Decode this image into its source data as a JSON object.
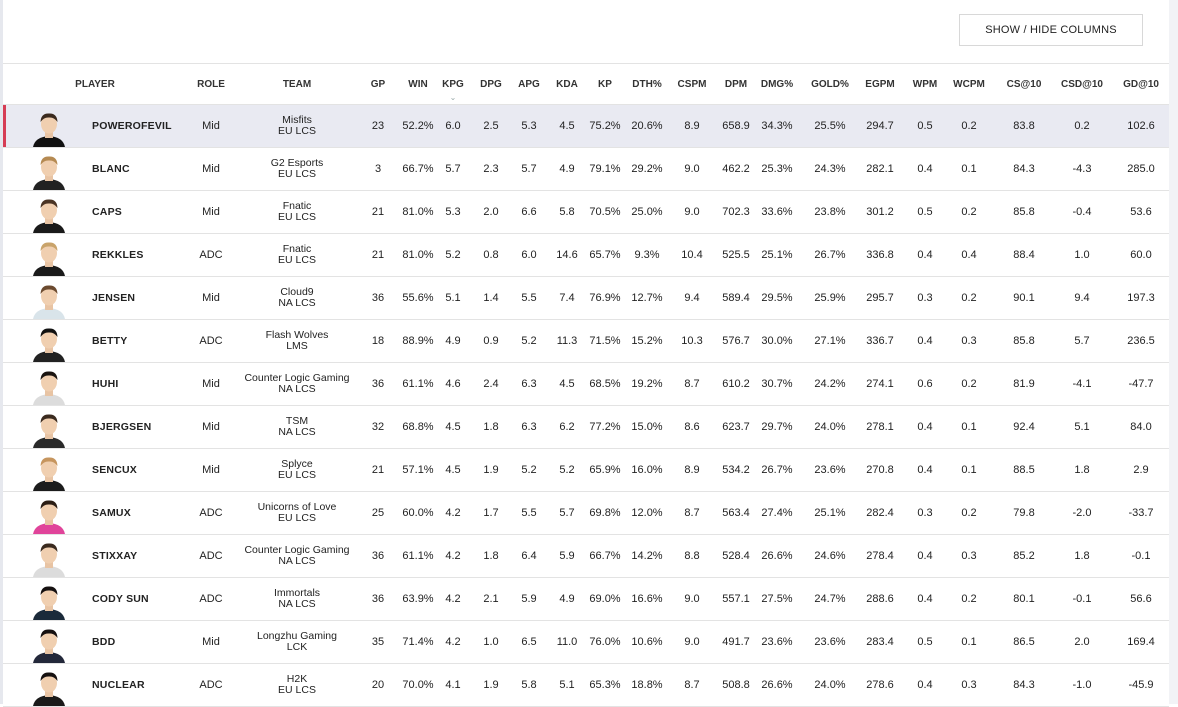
{
  "toolbar": {
    "show_hide_label": "SHOW / HIDE COLUMNS"
  },
  "columns": [
    "PLAYER",
    "ROLE",
    "TEAM",
    "GP",
    "WIN",
    "KPG",
    "DPG",
    "APG",
    "KDA",
    "KP",
    "DTH%",
    "CSPM",
    "DPM",
    "DMG%",
    "GOLD%",
    "EGPM",
    "WPM",
    "WCPM",
    "CS@10",
    "CSD@10",
    "GD@10"
  ],
  "sort": {
    "column": "KPG",
    "direction": "descending"
  },
  "colors": {
    "selected_row_bg": "#e9eaf2",
    "selected_accent": "#d63d55"
  },
  "players": [
    {
      "name": "POWEROFEVIL",
      "role": "Mid",
      "team": "Misfits",
      "league": "EU LCS",
      "stats": [
        "23",
        "52.2%",
        "6.0",
        "2.5",
        "5.3",
        "4.5",
        "75.2%",
        "20.6%",
        "8.9",
        "658.9",
        "34.3%",
        "25.5%",
        "294.7",
        "0.5",
        "0.2",
        "83.8",
        "0.2",
        "102.6"
      ],
      "shirt": "#111",
      "hair": "#3a2a1e"
    },
    {
      "name": "BLANC",
      "role": "Mid",
      "team": "G2 Esports",
      "league": "EU LCS",
      "stats": [
        "3",
        "66.7%",
        "5.7",
        "2.3",
        "5.7",
        "4.9",
        "79.1%",
        "29.2%",
        "9.0",
        "462.2",
        "25.3%",
        "24.3%",
        "282.1",
        "0.4",
        "0.1",
        "84.3",
        "-4.3",
        "285.0"
      ],
      "shirt": "#222",
      "hair": "#b58a52"
    },
    {
      "name": "CAPS",
      "role": "Mid",
      "team": "Fnatic",
      "league": "EU LCS",
      "stats": [
        "21",
        "81.0%",
        "5.3",
        "2.0",
        "6.6",
        "5.8",
        "70.5%",
        "25.0%",
        "9.0",
        "702.3",
        "33.6%",
        "23.8%",
        "301.2",
        "0.5",
        "0.2",
        "85.8",
        "-0.4",
        "53.6"
      ],
      "shirt": "#1a1a1a",
      "hair": "#4a3424"
    },
    {
      "name": "REKKLES",
      "role": "ADC",
      "team": "Fnatic",
      "league": "EU LCS",
      "stats": [
        "21",
        "81.0%",
        "5.2",
        "0.8",
        "6.0",
        "14.6",
        "65.7%",
        "9.3%",
        "10.4",
        "525.5",
        "25.1%",
        "26.7%",
        "336.8",
        "0.4",
        "0.4",
        "88.4",
        "1.0",
        "60.0"
      ],
      "shirt": "#1a1a1a",
      "hair": "#c9a36a"
    },
    {
      "name": "JENSEN",
      "role": "Mid",
      "team": "Cloud9",
      "league": "NA LCS",
      "stats": [
        "36",
        "55.6%",
        "5.1",
        "1.4",
        "5.5",
        "7.4",
        "76.9%",
        "12.7%",
        "9.4",
        "589.4",
        "29.5%",
        "25.9%",
        "295.7",
        "0.3",
        "0.2",
        "90.1",
        "9.4",
        "197.3"
      ],
      "shirt": "#d9e4ea",
      "hair": "#6b4a2f"
    },
    {
      "name": "BETTY",
      "role": "ADC",
      "team": "Flash Wolves",
      "league": "LMS",
      "stats": [
        "18",
        "88.9%",
        "4.9",
        "0.9",
        "5.2",
        "11.3",
        "71.5%",
        "15.2%",
        "10.3",
        "576.7",
        "30.0%",
        "27.1%",
        "336.7",
        "0.4",
        "0.3",
        "85.8",
        "5.7",
        "236.5"
      ],
      "shirt": "#222",
      "hair": "#111"
    },
    {
      "name": "HUHI",
      "role": "Mid",
      "team": "Counter Logic Gaming",
      "league": "NA LCS",
      "stats": [
        "36",
        "61.1%",
        "4.6",
        "2.4",
        "6.3",
        "4.5",
        "68.5%",
        "19.2%",
        "8.7",
        "610.2",
        "30.7%",
        "24.2%",
        "274.1",
        "0.6",
        "0.2",
        "81.9",
        "-4.1",
        "-47.7"
      ],
      "shirt": "#dcdcdc",
      "hair": "#1a1410"
    },
    {
      "name": "BJERGSEN",
      "role": "Mid",
      "team": "TSM",
      "league": "NA LCS",
      "stats": [
        "32",
        "68.8%",
        "4.5",
        "1.8",
        "6.3",
        "6.2",
        "77.2%",
        "15.0%",
        "8.6",
        "623.7",
        "29.7%",
        "24.0%",
        "278.1",
        "0.4",
        "0.1",
        "92.4",
        "5.1",
        "84.0"
      ],
      "shirt": "#2a2a2a",
      "hair": "#3a2a1e"
    },
    {
      "name": "SENCUX",
      "role": "Mid",
      "team": "Splyce",
      "league": "EU LCS",
      "stats": [
        "21",
        "57.1%",
        "4.5",
        "1.9",
        "5.2",
        "5.2",
        "65.9%",
        "16.0%",
        "8.9",
        "534.2",
        "26.7%",
        "23.6%",
        "270.8",
        "0.4",
        "0.1",
        "88.5",
        "1.8",
        "2.9"
      ],
      "shirt": "#1c1c1c",
      "hair": "#c6955e"
    },
    {
      "name": "SAMUX",
      "role": "ADC",
      "team": "Unicorns of Love",
      "league": "EU LCS",
      "stats": [
        "25",
        "60.0%",
        "4.2",
        "1.7",
        "5.5",
        "5.7",
        "69.8%",
        "12.0%",
        "8.7",
        "563.4",
        "27.4%",
        "25.1%",
        "282.4",
        "0.3",
        "0.2",
        "79.8",
        "-2.0",
        "-33.7"
      ],
      "shirt": "#e0449a",
      "hair": "#2a1d14"
    },
    {
      "name": "STIXXAY",
      "role": "ADC",
      "team": "Counter Logic Gaming",
      "league": "NA LCS",
      "stats": [
        "36",
        "61.1%",
        "4.2",
        "1.8",
        "6.4",
        "5.9",
        "66.7%",
        "14.2%",
        "8.8",
        "528.4",
        "26.6%",
        "24.6%",
        "278.4",
        "0.4",
        "0.3",
        "85.2",
        "1.8",
        "-0.1"
      ],
      "shirt": "#dcdcdc",
      "hair": "#3a2a1e"
    },
    {
      "name": "CODY SUN",
      "role": "ADC",
      "team": "Immortals",
      "league": "NA LCS",
      "stats": [
        "36",
        "63.9%",
        "4.2",
        "2.1",
        "5.9",
        "4.9",
        "69.0%",
        "16.6%",
        "9.0",
        "557.1",
        "27.5%",
        "24.7%",
        "288.6",
        "0.4",
        "0.2",
        "80.1",
        "-0.1",
        "56.6"
      ],
      "shirt": "#1b2a3a",
      "hair": "#151010"
    },
    {
      "name": "BDD",
      "role": "Mid",
      "team": "Longzhu Gaming",
      "league": "LCK",
      "stats": [
        "35",
        "71.4%",
        "4.2",
        "1.0",
        "6.5",
        "11.0",
        "76.0%",
        "10.6%",
        "9.0",
        "491.7",
        "23.6%",
        "23.6%",
        "283.4",
        "0.5",
        "0.1",
        "86.5",
        "2.0",
        "169.4"
      ],
      "shirt": "#23283a",
      "hair": "#151010"
    },
    {
      "name": "NUCLEAR",
      "role": "ADC",
      "team": "H2K",
      "league": "EU LCS",
      "stats": [
        "20",
        "70.0%",
        "4.1",
        "1.9",
        "5.8",
        "5.1",
        "65.3%",
        "18.8%",
        "8.7",
        "508.8",
        "26.6%",
        "24.0%",
        "278.6",
        "0.4",
        "0.3",
        "84.3",
        "-1.0",
        "-45.9"
      ],
      "shirt": "#1a1a1a",
      "hair": "#151010"
    }
  ]
}
